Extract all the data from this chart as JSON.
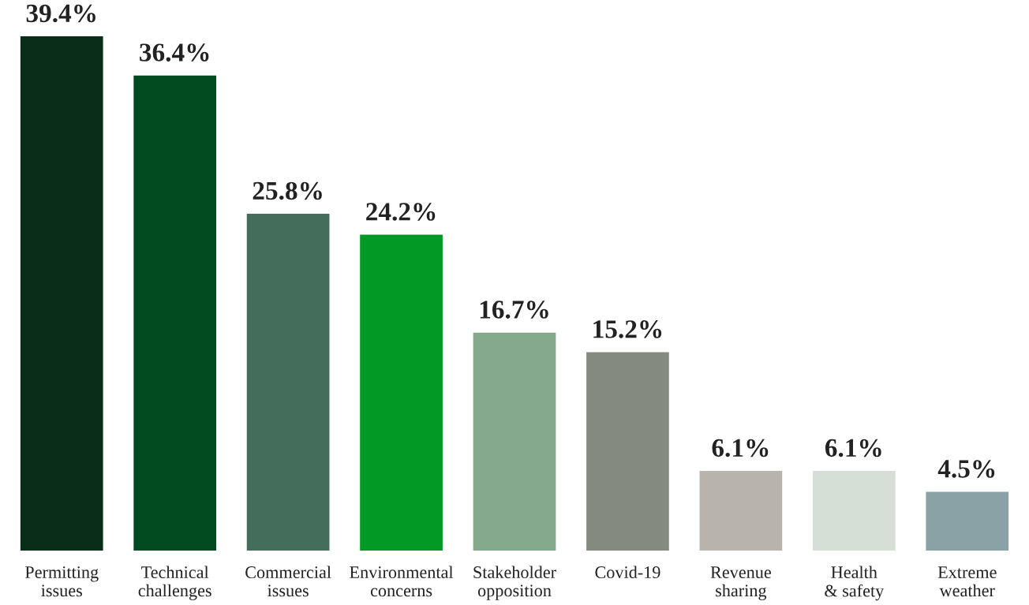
{
  "chart_data": {
    "type": "bar",
    "categories": [
      "Permitting\nissues",
      "Technical\nchallenges",
      "Commercial\nissues",
      "Environmental\nconcerns",
      "Stakeholder\nopposition",
      "Covid-19",
      "Revenue\nsharing",
      "Health\n& safety",
      "Extreme\nweather"
    ],
    "values": [
      39.4,
      36.4,
      25.8,
      24.2,
      16.7,
      15.2,
      6.1,
      6.1,
      4.5
    ],
    "value_labels": [
      "39.4%",
      "36.4%",
      "25.8%",
      "24.2%",
      "16.7%",
      "15.2%",
      "6.1%",
      "6.1%",
      "4.5%"
    ],
    "colors": [
      "#0a2d17",
      "#024a20",
      "#446d5c",
      "#029a24",
      "#84a98c",
      "#858a7e",
      "#b8b4ab",
      "#d5dfd5",
      "#8aa2a6"
    ]
  }
}
